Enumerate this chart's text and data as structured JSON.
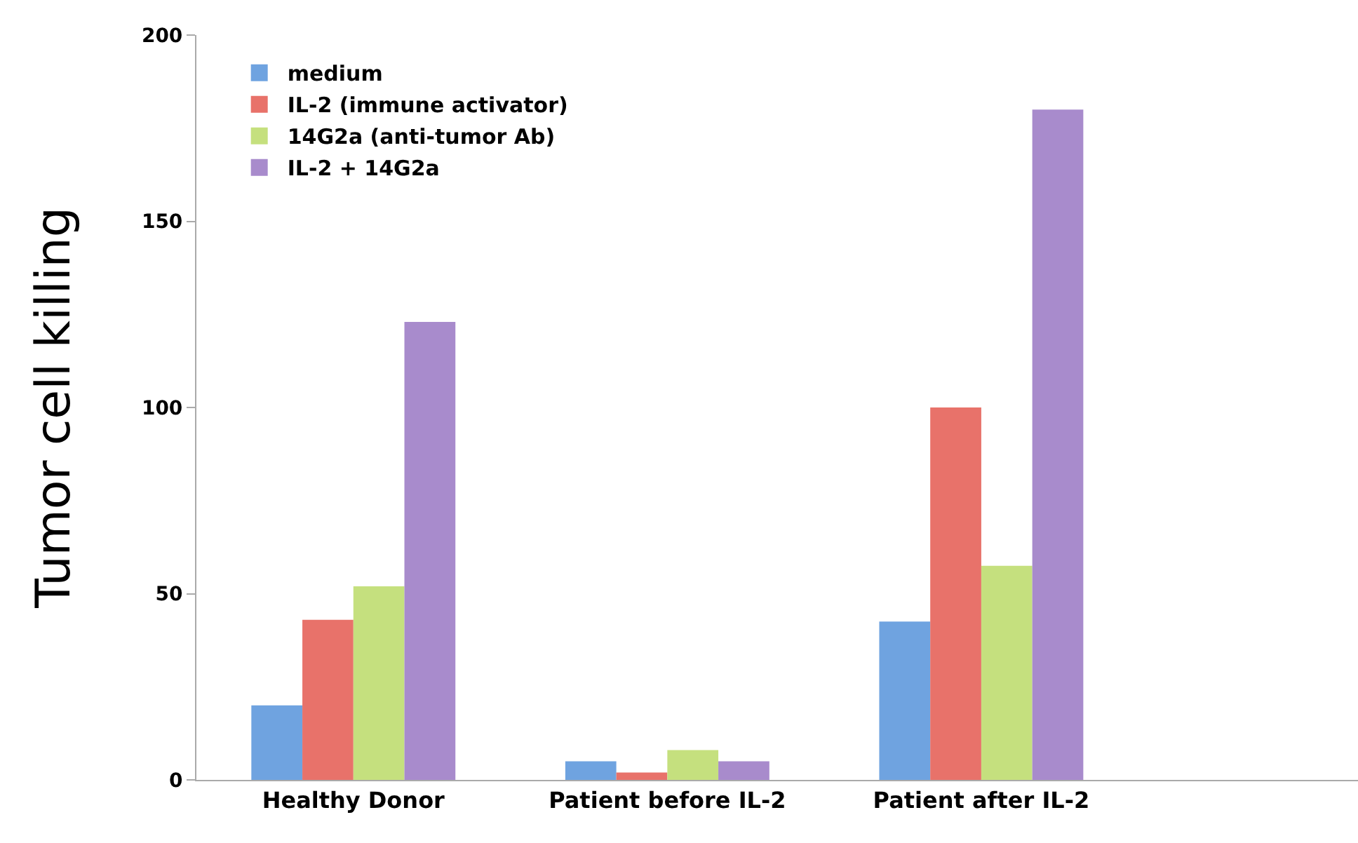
{
  "chart_data": {
    "type": "bar",
    "ylabel": "Tumor cell killing",
    "categories": [
      "Healthy Donor",
      "Patient before IL-2",
      "Patient after IL-2",
      null
    ],
    "series": [
      {
        "name": "medium",
        "color": "#6fa3e0",
        "values": [
          20,
          5,
          42.5,
          null
        ]
      },
      {
        "name": "IL-2 (immune activator)",
        "color": "#e8726a",
        "values": [
          43,
          2,
          100,
          null
        ]
      },
      {
        "name": "14G2a (anti-tumor Ab)",
        "color": "#c5e07e",
        "values": [
          52,
          8,
          57.5,
          null
        ]
      },
      {
        "name": "IL-2 + 14G2a",
        "color": "#a88bcc",
        "values": [
          123,
          5,
          180,
          null
        ]
      }
    ],
    "ylim": [
      0,
      200
    ],
    "yticks": [
      0,
      50,
      100,
      150,
      200
    ],
    "legend": "top left"
  }
}
